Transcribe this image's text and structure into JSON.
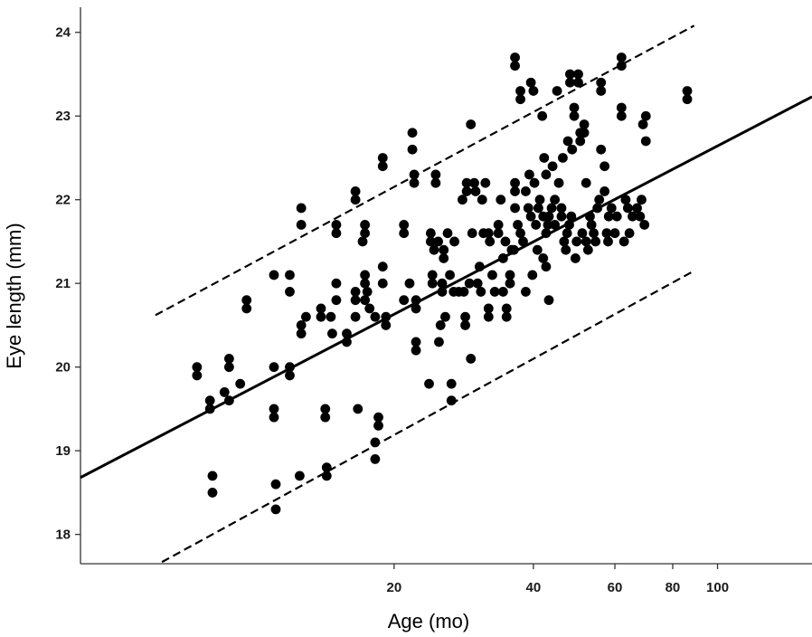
{
  "chart_data": {
    "type": "scatter",
    "title": "",
    "xlabel": "Age (mo)",
    "ylabel": "Eye length (mm)",
    "x_scale": "log",
    "xlim": [
      4.2,
      160
    ],
    "ylim": [
      17.65,
      24.3
    ],
    "x_ticks": [
      20,
      40,
      60,
      80,
      100
    ],
    "x_tick_labels": [
      "20",
      "40",
      "60",
      "80",
      "100"
    ],
    "y_ticks": [
      18,
      19,
      20,
      21,
      22,
      23,
      24
    ],
    "y_tick_labels": [
      "18",
      "19",
      "20",
      "21",
      "22",
      "23",
      "24"
    ],
    "grid": false,
    "point_color": "#000000",
    "fit_line": {
      "style": "solid",
      "points": [
        [
          4.2,
          18.68
        ],
        [
          160,
          23.23
        ]
      ]
    },
    "prediction_bands": [
      {
        "style": "dashed",
        "points": [
          [
            6.1,
            20.62
          ],
          [
            89,
            24.08
          ]
        ]
      },
      {
        "style": "dashed",
        "points": [
          [
            6.3,
            17.67
          ],
          [
            89,
            21.15
          ]
        ]
      }
    ],
    "points": [
      [
        7.5,
        20.0
      ],
      [
        7.5,
        19.9
      ],
      [
        8.0,
        19.6
      ],
      [
        8.0,
        19.5
      ],
      [
        8.1,
        18.7
      ],
      [
        8.1,
        18.5
      ],
      [
        8.6,
        19.7
      ],
      [
        8.8,
        20.1
      ],
      [
        8.8,
        20.0
      ],
      [
        8.8,
        19.6
      ],
      [
        9.3,
        19.8
      ],
      [
        9.6,
        20.8
      ],
      [
        9.6,
        20.7
      ],
      [
        11.0,
        21.1
      ],
      [
        11.0,
        20.0
      ],
      [
        11.0,
        19.5
      ],
      [
        11.0,
        19.4
      ],
      [
        11.1,
        18.6
      ],
      [
        11.1,
        18.3
      ],
      [
        11.9,
        21.1
      ],
      [
        11.9,
        20.9
      ],
      [
        11.9,
        20.0
      ],
      [
        11.9,
        19.9
      ],
      [
        12.6,
        21.9
      ],
      [
        12.6,
        21.7
      ],
      [
        12.6,
        20.5
      ],
      [
        12.6,
        20.4
      ],
      [
        12.9,
        20.6
      ],
      [
        12.5,
        18.7
      ],
      [
        13.9,
        20.7
      ],
      [
        13.9,
        20.6
      ],
      [
        14.2,
        19.5
      ],
      [
        14.2,
        19.4
      ],
      [
        14.3,
        18.8
      ],
      [
        14.3,
        18.7
      ],
      [
        14.6,
        20.6
      ],
      [
        14.7,
        20.4
      ],
      [
        15.0,
        21.7
      ],
      [
        15.0,
        21.6
      ],
      [
        15.0,
        21.0
      ],
      [
        15.0,
        20.8
      ],
      [
        15.8,
        20.4
      ],
      [
        15.8,
        20.3
      ],
      [
        16.5,
        22.1
      ],
      [
        16.5,
        22.0
      ],
      [
        16.5,
        20.9
      ],
      [
        16.5,
        20.8
      ],
      [
        16.5,
        20.6
      ],
      [
        16.7,
        19.5
      ],
      [
        17.1,
        21.5
      ],
      [
        17.3,
        21.7
      ],
      [
        17.3,
        21.6
      ],
      [
        17.3,
        21.1
      ],
      [
        17.3,
        21.0
      ],
      [
        17.3,
        20.8
      ],
      [
        17.5,
        20.9
      ],
      [
        17.7,
        20.7
      ],
      [
        18.2,
        20.6
      ],
      [
        18.2,
        19.1
      ],
      [
        18.2,
        18.9
      ],
      [
        18.5,
        19.4
      ],
      [
        18.5,
        19.3
      ],
      [
        18.9,
        22.5
      ],
      [
        18.9,
        22.4
      ],
      [
        18.9,
        21.2
      ],
      [
        18.9,
        21.0
      ],
      [
        19.2,
        20.6
      ],
      [
        19.2,
        20.5
      ],
      [
        21.0,
        21.7
      ],
      [
        21.0,
        21.6
      ],
      [
        21.0,
        20.8
      ],
      [
        21.6,
        21.0
      ],
      [
        21.9,
        22.8
      ],
      [
        21.9,
        22.6
      ],
      [
        22.1,
        22.3
      ],
      [
        22.1,
        22.2
      ],
      [
        22.3,
        20.8
      ],
      [
        22.3,
        20.7
      ],
      [
        22.3,
        20.3
      ],
      [
        22.3,
        20.2
      ],
      [
        23.8,
        19.8
      ],
      [
        24.0,
        21.6
      ],
      [
        24.0,
        21.5
      ],
      [
        24.2,
        21.1
      ],
      [
        24.2,
        21.0
      ],
      [
        24.4,
        21.4
      ],
      [
        24.6,
        22.3
      ],
      [
        24.6,
        22.2
      ],
      [
        24.9,
        21.5
      ],
      [
        25.0,
        20.3
      ],
      [
        25.2,
        20.5
      ],
      [
        25.4,
        21.0
      ],
      [
        25.4,
        20.9
      ],
      [
        25.6,
        21.4
      ],
      [
        25.6,
        21.3
      ],
      [
        25.8,
        20.6
      ],
      [
        26.1,
        21.6
      ],
      [
        26.4,
        21.1
      ],
      [
        26.6,
        19.8
      ],
      [
        26.6,
        19.6
      ],
      [
        26.9,
        20.9
      ],
      [
        27.0,
        21.5
      ],
      [
        27.6,
        20.9
      ],
      [
        28.1,
        22.0
      ],
      [
        28.3,
        20.9
      ],
      [
        28.5,
        20.6
      ],
      [
        28.5,
        20.5
      ],
      [
        28.7,
        22.2
      ],
      [
        28.7,
        22.1
      ],
      [
        29.1,
        21.0
      ],
      [
        29.3,
        20.1
      ],
      [
        29.3,
        22.9
      ],
      [
        29.5,
        21.6
      ],
      [
        29.8,
        22.2
      ],
      [
        30.0,
        22.1
      ],
      [
        30.3,
        21.0
      ],
      [
        30.6,
        21.2
      ],
      [
        30.8,
        20.9
      ],
      [
        31.0,
        22.0
      ],
      [
        31.2,
        21.6
      ],
      [
        31.5,
        22.2
      ],
      [
        32.0,
        21.6
      ],
      [
        32.0,
        20.7
      ],
      [
        32.0,
        20.6
      ],
      [
        32.2,
        21.5
      ],
      [
        32.6,
        21.1
      ],
      [
        33.0,
        20.9
      ],
      [
        33.6,
        21.7
      ],
      [
        33.6,
        21.6
      ],
      [
        34.0,
        22.0
      ],
      [
        34.4,
        21.3
      ],
      [
        34.4,
        20.9
      ],
      [
        34.8,
        21.5
      ],
      [
        35.0,
        20.7
      ],
      [
        35.0,
        20.6
      ],
      [
        35.6,
        21.1
      ],
      [
        35.6,
        21.0
      ],
      [
        35.9,
        21.4
      ],
      [
        36.3,
        21.4
      ],
      [
        36.5,
        22.2
      ],
      [
        36.5,
        22.1
      ],
      [
        36.5,
        21.9
      ],
      [
        36.5,
        23.7
      ],
      [
        36.5,
        23.6
      ],
      [
        37.0,
        21.7
      ],
      [
        37.5,
        21.6
      ],
      [
        37.5,
        23.3
      ],
      [
        37.5,
        23.2
      ],
      [
        38.0,
        21.5
      ],
      [
        38.5,
        22.1
      ],
      [
        38.5,
        20.9
      ],
      [
        39.0,
        21.9
      ],
      [
        39.2,
        22.3
      ],
      [
        39.5,
        21.8
      ],
      [
        39.5,
        23.4
      ],
      [
        39.8,
        21.1
      ],
      [
        40.0,
        23.3
      ],
      [
        40.2,
        22.2
      ],
      [
        40.5,
        21.7
      ],
      [
        40.8,
        21.4
      ],
      [
        41.0,
        21.9
      ],
      [
        41.3,
        22.0
      ],
      [
        41.8,
        23.0
      ],
      [
        42.0,
        21.8
      ],
      [
        42.0,
        21.3
      ],
      [
        42.2,
        22.5
      ],
      [
        42.6,
        22.3
      ],
      [
        42.6,
        21.6
      ],
      [
        42.6,
        21.2
      ],
      [
        43.0,
        21.7
      ],
      [
        43.2,
        21.8
      ],
      [
        43.2,
        20.8
      ],
      [
        43.8,
        21.9
      ],
      [
        44.0,
        22.4
      ],
      [
        44.5,
        22.0
      ],
      [
        44.5,
        21.7
      ],
      [
        45.0,
        23.3
      ],
      [
        45.4,
        22.2
      ],
      [
        46.0,
        21.8
      ],
      [
        46.0,
        21.9
      ],
      [
        46.3,
        22.5
      ],
      [
        46.6,
        21.5
      ],
      [
        47.0,
        21.4
      ],
      [
        47.3,
        21.6
      ],
      [
        47.5,
        22.7
      ],
      [
        47.8,
        21.7
      ],
      [
        48.0,
        23.5
      ],
      [
        48.0,
        23.4
      ],
      [
        48.3,
        21.8
      ],
      [
        48.5,
        22.6
      ],
      [
        49.0,
        23.1
      ],
      [
        49.0,
        23.0
      ],
      [
        49.3,
        21.3
      ],
      [
        49.6,
        21.5
      ],
      [
        50.0,
        23.5
      ],
      [
        50.0,
        23.4
      ],
      [
        50.5,
        22.8
      ],
      [
        50.5,
        22.7
      ],
      [
        51.0,
        21.6
      ],
      [
        51.5,
        22.9
      ],
      [
        51.5,
        22.8
      ],
      [
        52.0,
        22.2
      ],
      [
        52.0,
        21.5
      ],
      [
        52.5,
        21.4
      ],
      [
        53.0,
        21.8
      ],
      [
        53.4,
        21.7
      ],
      [
        54.0,
        21.6
      ],
      [
        54.5,
        21.5
      ],
      [
        55.0,
        21.9
      ],
      [
        55.5,
        22.0
      ],
      [
        56.0,
        23.4
      ],
      [
        56.0,
        23.3
      ],
      [
        56.0,
        22.6
      ],
      [
        57.0,
        22.4
      ],
      [
        57.0,
        22.1
      ],
      [
        57.6,
        21.6
      ],
      [
        58.0,
        21.5
      ],
      [
        58.2,
        21.8
      ],
      [
        59.0,
        21.9
      ],
      [
        60.0,
        21.6
      ],
      [
        60.6,
        21.8
      ],
      [
        62.0,
        23.7
      ],
      [
        62.0,
        23.6
      ],
      [
        62.0,
        23.1
      ],
      [
        62.0,
        23.0
      ],
      [
        62.8,
        21.5
      ],
      [
        63.3,
        22.0
      ],
      [
        64.0,
        21.9
      ],
      [
        64.5,
        21.6
      ],
      [
        65.5,
        21.8
      ],
      [
        67.0,
        21.9
      ],
      [
        68.0,
        21.8
      ],
      [
        68.5,
        22.0
      ],
      [
        69.0,
        22.9
      ],
      [
        70.0,
        23.0
      ],
      [
        70.0,
        22.7
      ],
      [
        69.5,
        21.7
      ],
      [
        86.0,
        23.3
      ],
      [
        86.0,
        23.2
      ]
    ]
  }
}
